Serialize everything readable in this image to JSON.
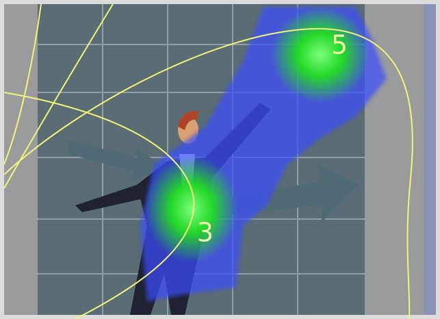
{
  "markers": [
    {
      "label": "5"
    },
    {
      "label": "3"
    }
  ]
}
